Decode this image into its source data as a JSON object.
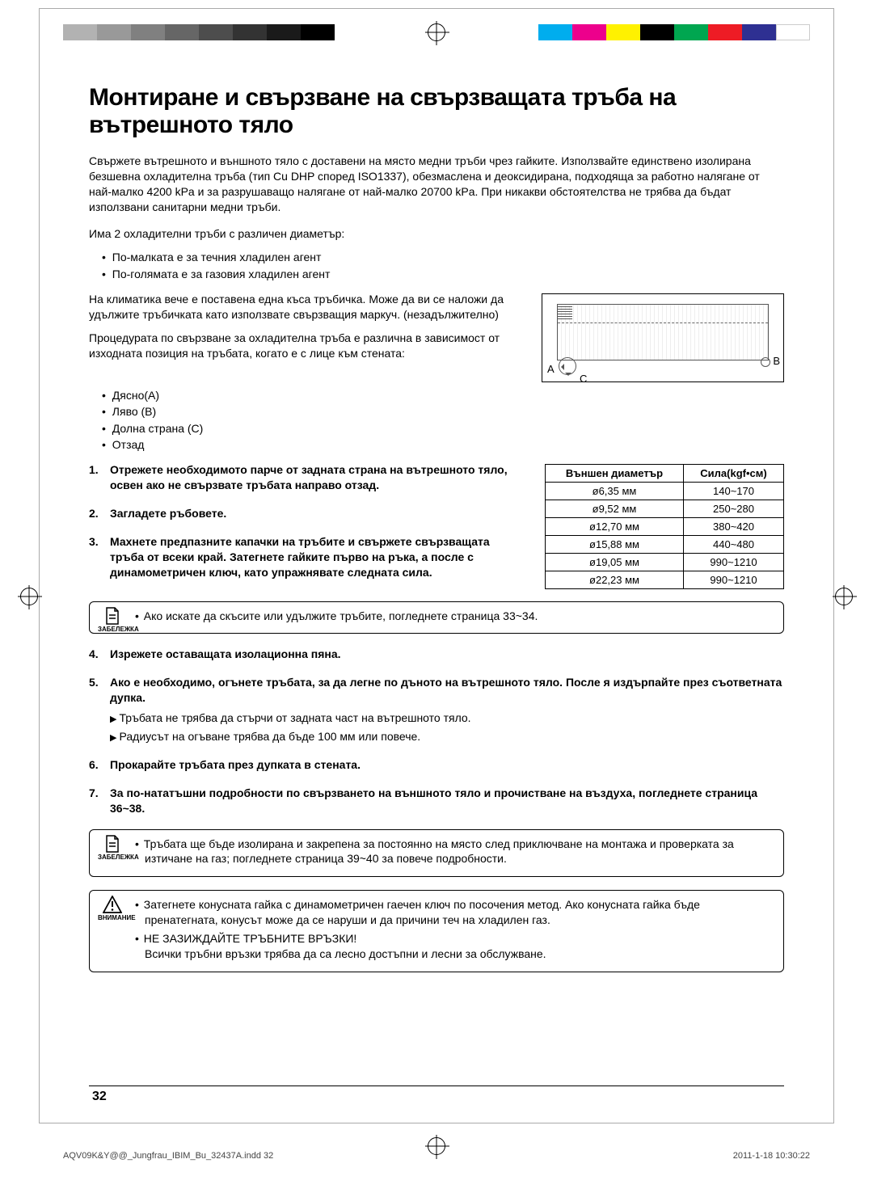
{
  "colors": {
    "left_swatches": [
      "#b2b2b2",
      "#999999",
      "#808080",
      "#666666",
      "#4d4d4d",
      "#333333",
      "#1a1a1a",
      "#000000"
    ],
    "right_swatches": [
      "#00adee",
      "#ed008c",
      "#fff100",
      "#000000",
      "#00a650",
      "#ee1c25",
      "#2e3092",
      "#ffffff"
    ]
  },
  "title": "Монтиране и свързване на свързващата тръба на вътрешното тяло",
  "intro": "Свържете вътрешното и външното тяло с доставени на място медни тръби чрез гайките. Използвайте единствено изолирана безшевна охладителна тръба (тип Cu DHP според ISO1337), обезмаслена и деоксидирана, подходяща за работно налягане от най-малко 4200 kPa и за разрушаващо налягане от най-малко 20700 kPa. При никакви обстоятелства не трябва да бъдат използвани санитарни медни тръби.",
  "para1": "Има 2 охладителни тръби с различен диаметър:",
  "list1": [
    "По-малката е за течния хладилен агент",
    "По-голямата е за газовия хладилен агент"
  ],
  "para2": "На климатика вече е поставена една къса тръбичка. Може да ви се наложи да удължите тръбичката като използвате  свързващия маркуч. (незадължително)",
  "para3": "Процедурата по свързване за охладителна тръба е различна в зависимост от изходната позиция на тръбата, когато е с лице към стената:",
  "list2": [
    "Дясно(A)",
    "Ляво (B)",
    "Долна страна (C)",
    "Отзад"
  ],
  "diagram_labels": {
    "a": "A",
    "b": "B",
    "c": "C"
  },
  "steps": [
    "Отрежете необходимото парче от задната страна на вътрешното тяло, освен ако не свързвате тръбата направо отзад.",
    "Загладете ръбовете.",
    "Махнете предпазните капачки на тръбите и свържете свързващата тръба от всеки край. Затегнете гайките първо на ръка, а после с динамометричен ключ, като упражнявате следната сила."
  ],
  "table": {
    "headers": [
      "Външен диаметър",
      "Сила(kgf•см)"
    ],
    "rows": [
      [
        "ø6,35 мм",
        "140~170"
      ],
      [
        "ø9,52 мм",
        "250~280"
      ],
      [
        "ø12,70 мм",
        "380~420"
      ],
      [
        "ø15,88 мм",
        "440~480"
      ],
      [
        "ø19,05 мм",
        "990~1210"
      ],
      [
        "ø22,23 мм",
        "990~1210"
      ]
    ]
  },
  "note1_label": "ЗАБЕЛЕЖКА",
  "note1": "Ако искате да скъсите или удължите тръбите, погледнете страница 33~34.",
  "steps2": {
    "s4": "Изрежете оставащата изолационна пяна.",
    "s5": "Ако е необходимо, огънете тръбата, за да легне по дъното на вътрешното тяло. После я издърпайте през съответната дупка.",
    "s5_sub": [
      "Тръбата не трябва да стърчи от задната част на вътрешното тяло.",
      "Радиусът на огъване трябва да бъде 100 мм или повече."
    ],
    "s6": "Прокарайте тръбата през дупката в стената.",
    "s7": "За по-нататъшни подробности по свързването на външното тяло и прочистване на въздуха, погледнете страница 36~38."
  },
  "note2_label": "ЗАБЕЛЕЖКА",
  "note2": "Тръбата ще бъде изолирана и закрепена за постоянно на място след приключване на монтажа и проверката за изтичане на газ; погледнете страница 39~40 за повече подробности.",
  "caution_label": "ВНИМАНИЕ",
  "caution": [
    "Затегнете конусната гайка с динамометричен гаечен ключ по посочения метод. Ако конусната гайка бъде пренатегната, конусът може да се наруши и да причини теч на хладилен газ.",
    "НЕ ЗАЗИЖДАЙТЕ ТРЪБНИТЕ ВРЪЗКИ!\nВсички тръбни връзки трябва да са лесно достъпни и лесни за обслужване."
  ],
  "page_number": "32",
  "footer_left": "AQV09K&Y@@_Jungfrau_IBIM_Bu_32437A.indd   32",
  "footer_right": "2011-1-18   10:30:22"
}
